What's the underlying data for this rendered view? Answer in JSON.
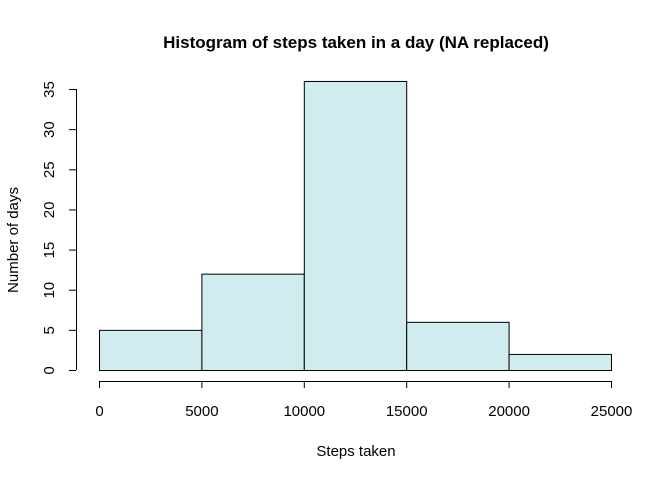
{
  "chart_data": {
    "type": "bar",
    "title": "Histogram of steps taken in a day (NA replaced)",
    "xlabel": "Steps taken",
    "ylabel": "Number of days",
    "bins": [
      {
        "from": 0,
        "to": 5000,
        "count": 5
      },
      {
        "from": 5000,
        "to": 10000,
        "count": 12
      },
      {
        "from": 10000,
        "to": 15000,
        "count": 36
      },
      {
        "from": 15000,
        "to": 20000,
        "count": 6
      },
      {
        "from": 20000,
        "to": 25000,
        "count": 2
      }
    ],
    "xlim": [
      0,
      25000
    ],
    "ylim": [
      0,
      35
    ],
    "x_ticks": [
      "0",
      "5000",
      "10000",
      "15000",
      "20000",
      "25000"
    ],
    "y_ticks": [
      "0",
      "5",
      "10",
      "15",
      "20",
      "25",
      "30",
      "35"
    ],
    "bar_color": "#d1ecee",
    "bar_border_color": "#000000",
    "grid": false,
    "legend": "none"
  }
}
